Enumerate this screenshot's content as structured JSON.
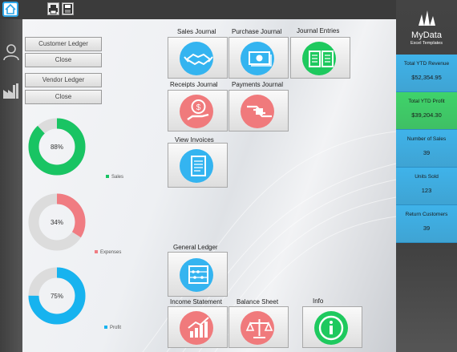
{
  "toolbar": {
    "home_icon": "home-icon",
    "print_icon": "printer-icon",
    "save_icon": "save-icon"
  },
  "sidebar": {
    "user_icon": "user-icon",
    "factory_icon": "factory-icon"
  },
  "ledger_panel": {
    "customer_label": "Customer Ledger",
    "customer_close": "Close",
    "vendor_label": "Vendor Ledger",
    "vendor_close": "Close"
  },
  "charts": [
    {
      "percent_label": "88%",
      "percent": 88,
      "legend": "Sales",
      "color": "#19c463"
    },
    {
      "percent_label": "34%",
      "percent": 34,
      "legend": "Expenses",
      "color": "#f07c82"
    },
    {
      "percent_label": "75%",
      "percent": 75,
      "legend": "Profit",
      "color": "#17b3ef"
    }
  ],
  "tiles": {
    "sales_journal": "Sales Journal",
    "purchase_journal": "Purchase Journal",
    "journal_entries": "Journal Entries",
    "receipts_journal": "Receipts Journal",
    "payments_journal": "Payments Journal",
    "view_invoices": "View Invoices",
    "general_ledger": "General Ledger",
    "income_statement": "Income Statement",
    "balance_sheet": "Balance Sheet",
    "info": "Info"
  },
  "brand": {
    "name": "MyData",
    "tagline": "Excel Templates"
  },
  "kpis": [
    {
      "title": "Total YTD Revenue",
      "value": "$52,354.95",
      "color": "#3fb3ea"
    },
    {
      "title": "Total YTD Profit",
      "value": "$39,204.30",
      "color": "#3fd36a"
    },
    {
      "title": "Number of Sales",
      "value": "39",
      "color": "#3fb3ea"
    },
    {
      "title": "Units Sold",
      "value": "123",
      "color": "#3fb3ea"
    },
    {
      "title": "Return Customers",
      "value": "39",
      "color": "#3fb3ea"
    }
  ],
  "colors": {
    "blue": "#34b4f0",
    "red": "#f07a7c",
    "green": "#1ec95e"
  }
}
